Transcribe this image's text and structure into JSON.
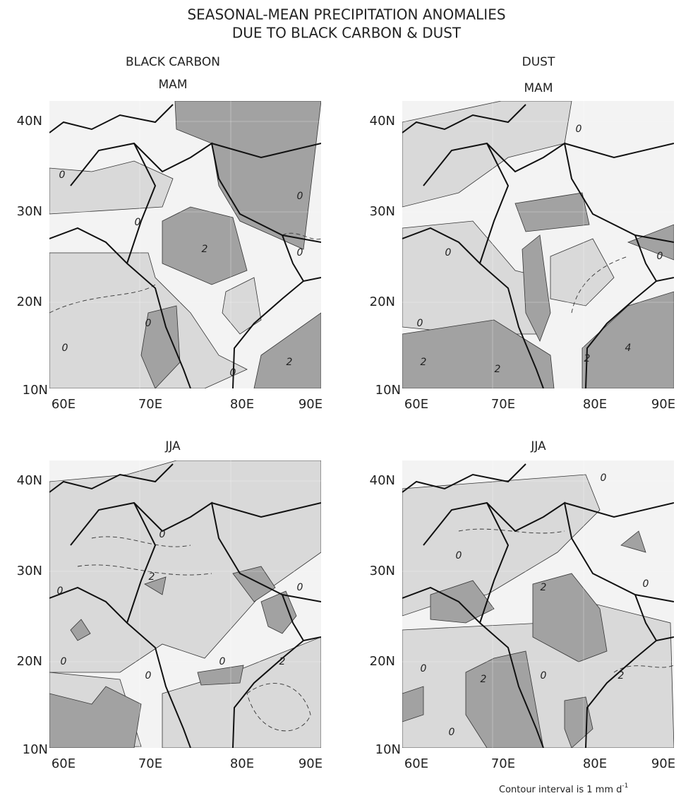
{
  "title": [
    "SEASONAL-MEAN PRECIPITATION ANOMALIES",
    "DUE TO BLACK CARBON & DUST"
  ],
  "columns": [
    "BLACK CARBON",
    "DUST"
  ],
  "x_ticks": [
    "60E",
    "70E",
    "80E",
    "90E"
  ],
  "y_ticks": [
    "10N",
    "20N",
    "30N",
    "40N"
  ],
  "panels": [
    {
      "season": "MAM",
      "contour_labels": [
        "0",
        "0",
        "2",
        "0",
        "0",
        "0",
        "0",
        "0",
        "2"
      ]
    },
    {
      "season": "MAM",
      "contour_labels": [
        "0",
        "0",
        "0",
        "2",
        "2",
        "4",
        "2",
        "0"
      ]
    },
    {
      "season": "JJA",
      "contour_labels": [
        "0",
        "2",
        "0",
        "0",
        "0",
        "0",
        "0",
        "2"
      ]
    },
    {
      "season": "JJA",
      "contour_labels": [
        "0",
        "0",
        "2",
        "0",
        "0",
        "2",
        "0",
        "2",
        "0"
      ]
    }
  ],
  "footnote": {
    "text": "Contour interval is 1 mm d",
    "superscript": "-1"
  }
}
